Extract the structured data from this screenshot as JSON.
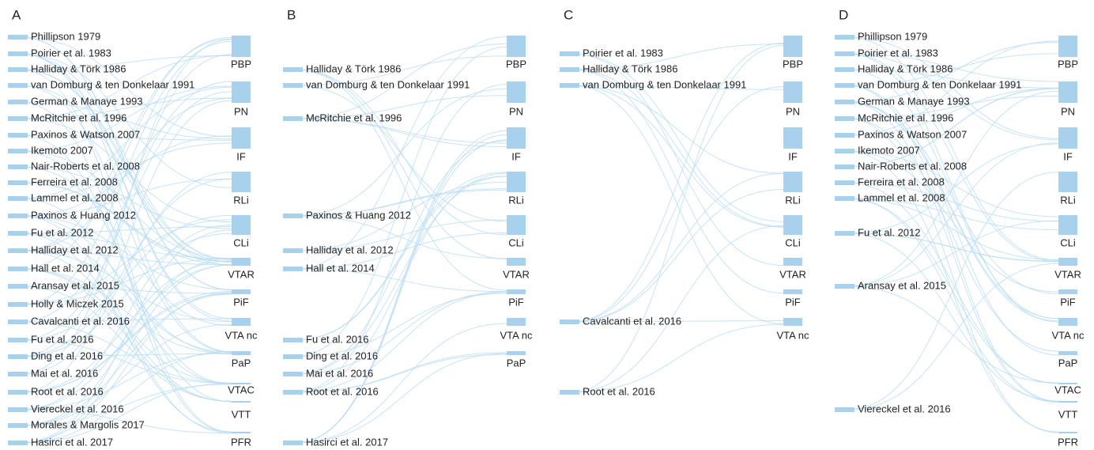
{
  "panels": [
    {
      "label": "A",
      "sources": [
        "Phillipson 1979",
        "Poirier et al. 1983",
        "Halliday & Törk 1986",
        "van Domburg & ten Donkelaar 1991",
        "German & Manaye 1993",
        "McRitchie et al. 1996",
        "Paxinos & Watson 2007",
        "Ikemoto 2007",
        "Nair-Roberts et al. 2008",
        "Ferreira et al. 2008",
        "Lammel et al. 2008",
        "Paxinos & Huang 2012",
        "Fu et al. 2012",
        "Halliday et al. 2012",
        "Hall et al. 2014",
        "Aransay et al. 2015",
        "Holly & Miczek 2015",
        "Cavalcanti et al. 2016",
        "Fu et al. 2016",
        "Ding et al. 2016",
        "Mai et al. 2016",
        "Root et al. 2016",
        "Viereckel et al. 2016",
        "Morales & Margolis 2017",
        "Hasirci et al. 2017"
      ],
      "targets": [
        "PBP",
        "PN",
        "IF",
        "RLi",
        "CLi",
        "VTAR",
        "PiF",
        "VTA nc",
        "PaP",
        "VTAC",
        "VTT",
        "PFR"
      ]
    },
    {
      "label": "B",
      "sources": [
        "Halliday & Törk 1986",
        "van Domburg & ten Donkelaar 1991",
        "McRitchie et al. 1996",
        "Paxinos & Huang 2012",
        "Halliday et al. 2012",
        "Hall et al. 2014",
        "Fu et al. 2016",
        "Ding et al. 2016",
        "Mai et al. 2016",
        "Root et al. 2016",
        "Hasirci et al. 2017"
      ],
      "targets": [
        "PBP",
        "PN",
        "IF",
        "RLi",
        "CLi",
        "VTAR",
        "PiF",
        "VTA nc",
        "PaP"
      ]
    },
    {
      "label": "C",
      "sources": [
        "Poirier et al. 1983",
        "Halliday & Törk 1986",
        "van Domburg & ten Donkelaar 1991",
        "Cavalcanti et al. 2016",
        "Root et al. 2016"
      ],
      "targets": [
        "PBP",
        "PN",
        "IF",
        "RLi",
        "CLi",
        "VTAR",
        "PiF",
        "VTA nc"
      ]
    },
    {
      "label": "D",
      "sources": [
        "Phillipson 1979",
        "Poirier et al. 1983",
        "Halliday & Törk 1986",
        "van Domburg & ten Donkelaar 1991",
        "German & Manaye 1993",
        "McRitchie et al. 1996",
        "Paxinos & Watson 2007",
        "Ikemoto 2007",
        "Nair-Roberts et al. 2008",
        "Ferreira et al. 2008",
        "Lammel et al. 2008",
        "Fu et al. 2012",
        "Aransay et al. 2015",
        "Viereckel et al. 2016"
      ],
      "targets": [
        "PBP",
        "PN",
        "IF",
        "RLi",
        "CLi",
        "VTAR",
        "PiF",
        "VTA nc",
        "PaP",
        "VTAC",
        "VTT",
        "PFR"
      ]
    }
  ]
}
